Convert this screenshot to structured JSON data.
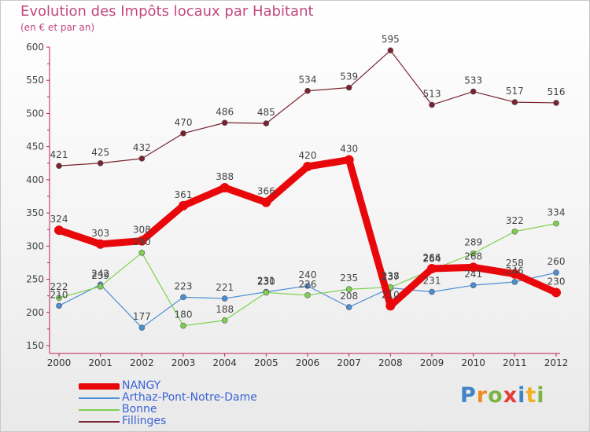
{
  "chart_data": {
    "type": "line",
    "title": "Evolution des Impôts locaux par Habitant",
    "subtitle": "(en € et par an)",
    "xlabel": "",
    "ylabel": "",
    "categories": [
      "2000",
      "2001",
      "2002",
      "2003",
      "2004",
      "2005",
      "2006",
      "2007",
      "2008",
      "2009",
      "2010",
      "2011",
      "2012"
    ],
    "ylim": [
      150,
      600
    ],
    "yticks": [
      150,
      200,
      250,
      300,
      350,
      400,
      450,
      500,
      550,
      600
    ],
    "grid": false,
    "legend_position": "bottom-left",
    "series": [
      {
        "name": "NANGY",
        "color": "#e8080b",
        "width": 9,
        "marker_radius": 6,
        "values": [
          324,
          303,
          308,
          361,
          388,
          366,
          420,
          430,
          210,
          266,
          268,
          258,
          230
        ]
      },
      {
        "name": "Arthaz-Pont-Notre-Dame",
        "color": "#4a8ed6",
        "width": 1.2,
        "marker_radius": 3.5,
        "values": [
          210,
          242,
          177,
          223,
          221,
          231,
          240,
          208,
          237,
          231,
          241,
          246,
          260
        ]
      },
      {
        "name": "Bonne",
        "color": "#7ed14e",
        "width": 1.2,
        "marker_radius": 3.5,
        "values": [
          222,
          239,
          290,
          180,
          188,
          230,
          226,
          235,
          238,
          264,
          289,
          322,
          334
        ]
      },
      {
        "name": "Fillinges",
        "color": "#7a2330",
        "width": 1.2,
        "marker_radius": 3.5,
        "values": [
          421,
          425,
          432,
          470,
          486,
          485,
          534,
          539,
          595,
          513,
          533,
          517,
          516
        ]
      }
    ]
  },
  "logo": {
    "letters": [
      "P",
      "r",
      "o",
      "x",
      "i",
      "t",
      "i"
    ]
  }
}
